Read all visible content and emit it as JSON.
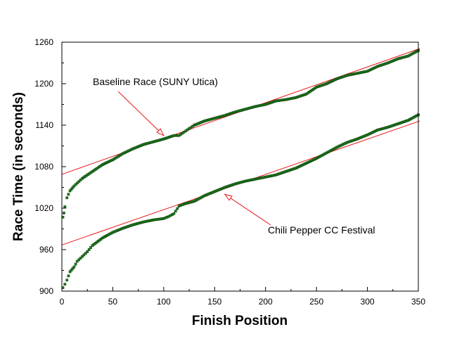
{
  "chart_data": {
    "type": "scatter",
    "title": "",
    "xlabel": "Finish Position",
    "ylabel": "Race Time (in seconds)",
    "xlim": [
      0,
      350
    ],
    "ylim": [
      900,
      1260
    ],
    "xticks": [
      "0",
      "50",
      "100",
      "150",
      "200",
      "250",
      "300",
      "350"
    ],
    "yticks": [
      "900",
      "960",
      "1020",
      "1080",
      "1140",
      "1200",
      "1260"
    ],
    "grid": false,
    "legend": "none",
    "series": [
      {
        "name": "Baseline Race (SUNY Utica)",
        "marker_color": "#1a7a1a",
        "x": [
          1,
          2,
          3,
          5,
          8,
          12,
          20,
          30,
          40,
          50,
          60,
          70,
          80,
          90,
          100,
          110,
          115,
          120,
          125,
          130,
          140,
          150,
          160,
          170,
          180,
          190,
          200,
          210,
          220,
          230,
          240,
          250,
          260,
          270,
          280,
          290,
          300,
          310,
          320,
          330,
          340,
          350
        ],
        "y": [
          1007,
          1013,
          1022,
          1035,
          1045,
          1052,
          1063,
          1073,
          1083,
          1090,
          1099,
          1106,
          1112,
          1116,
          1120,
          1125,
          1125,
          1130,
          1135,
          1140,
          1146,
          1150,
          1154,
          1159,
          1163,
          1167,
          1170,
          1175,
          1177,
          1180,
          1185,
          1195,
          1200,
          1207,
          1212,
          1215,
          1218,
          1225,
          1230,
          1236,
          1240,
          1248
        ]
      },
      {
        "name": "Chili Pepper CC Festival",
        "marker_color": "#1a7a1a",
        "x": [
          1,
          3,
          5,
          8,
          12,
          15,
          20,
          25,
          30,
          40,
          50,
          60,
          70,
          80,
          90,
          100,
          105,
          110,
          115,
          120,
          130,
          140,
          150,
          160,
          170,
          180,
          190,
          200,
          210,
          220,
          230,
          240,
          250,
          260,
          270,
          280,
          290,
          300,
          310,
          320,
          330,
          340,
          350
        ],
        "y": [
          905,
          910,
          916,
          928,
          935,
          943,
          950,
          957,
          966,
          977,
          985,
          991,
          996,
          1000,
          1003,
          1005,
          1008,
          1012,
          1023,
          1026,
          1030,
          1038,
          1044,
          1050,
          1055,
          1059,
          1062,
          1065,
          1068,
          1073,
          1078,
          1085,
          1092,
          1100,
          1108,
          1115,
          1120,
          1126,
          1133,
          1137,
          1142,
          1147,
          1155
        ]
      }
    ],
    "fit_lines": [
      {
        "color": "#e8191c",
        "x": [
          -27,
          373
        ],
        "y": [
          1055,
          1262
        ]
      },
      {
        "color": "#e8191c",
        "x": [
          -27,
          373
        ],
        "y": [
          953,
          1157
        ]
      }
    ],
    "annotations": [
      {
        "text": "Baseline Race (SUNY Utica)",
        "target": [
          100,
          1125
        ]
      },
      {
        "text": "Chili Pepper CC Festival",
        "target": [
          160,
          1040
        ]
      }
    ]
  }
}
